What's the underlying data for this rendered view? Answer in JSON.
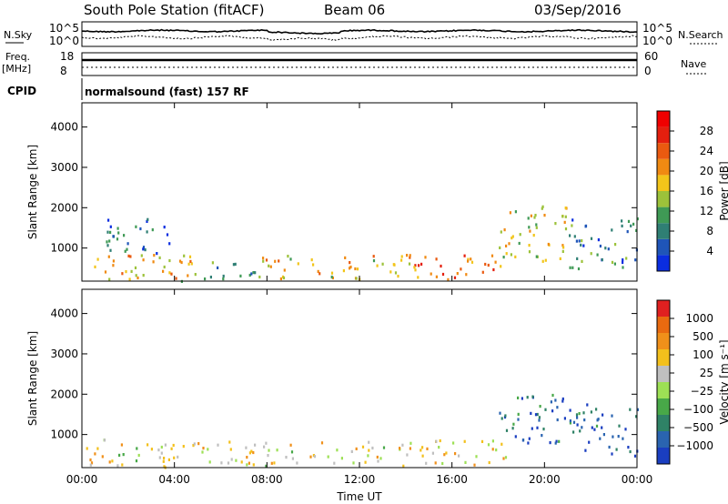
{
  "header": {
    "title": "South Pole Station (fitACF)",
    "beam": "Beam 06",
    "date": "03/Sep/2016"
  },
  "status_panels": {
    "nsky_label": "N.Sky",
    "nsearch_label": "N.Search",
    "noise_ticks_left": [
      "10^5",
      "10^0"
    ],
    "noise_ticks_right": [
      "10^5",
      "10^0"
    ],
    "freq_label": "Freq.",
    "freq_unit": "[MHz]",
    "freq_ticks": [
      "18",
      "8"
    ],
    "nave_label": "Nave",
    "nave_ticks": [
      "60",
      "0"
    ],
    "cpid_label": "CPID",
    "cpid_value": "normalsound (fast) 157 RF"
  },
  "chart_data": [
    {
      "type": "heatmap",
      "name": "power",
      "ylabel": "Slant Range [km]",
      "ylim": [
        180,
        4600
      ],
      "y_ticks": [
        1000,
        2000,
        3000,
        4000
      ],
      "x_ticks": [
        "00:00",
        "04:00",
        "08:00",
        "12:00",
        "16:00",
        "20:00",
        "00:00"
      ],
      "xlim_hours": [
        0,
        24
      ],
      "colorbar": {
        "label": "Power [dB]",
        "ticks": [
          "4",
          "8",
          "12",
          "16",
          "20",
          "24",
          "28"
        ],
        "colors": [
          "#0a2de0",
          "#1f55b8",
          "#2f7f74",
          "#3f9a55",
          "#9cc23a",
          "#f2c51a",
          "#f08a12",
          "#ea5a10",
          "#e41f0e",
          "#f00000"
        ]
      },
      "scatter_regions": [
        {
          "t0": 0.0,
          "t1": 4.8,
          "r0": 200,
          "r1": 900,
          "level": 0.6
        },
        {
          "t0": 1.0,
          "t1": 4.0,
          "r0": 900,
          "r1": 1800,
          "level": 0.2
        },
        {
          "t0": 4.8,
          "t1": 7.5,
          "r0": 250,
          "r1": 700,
          "level": 0.3
        },
        {
          "t0": 7.5,
          "t1": 14.0,
          "r0": 250,
          "r1": 850,
          "level": 0.55
        },
        {
          "t0": 14.0,
          "t1": 18.5,
          "r0": 250,
          "r1": 900,
          "level": 0.7
        },
        {
          "t0": 18.0,
          "t1": 21.0,
          "r0": 700,
          "r1": 2100,
          "level": 0.5
        },
        {
          "t0": 21.0,
          "t1": 24.0,
          "r0": 500,
          "r1": 1800,
          "level": 0.25
        }
      ]
    },
    {
      "type": "heatmap",
      "name": "velocity",
      "ylabel": "Slant Range [km]",
      "xlabel": "Time UT",
      "ylim": [
        180,
        4600
      ],
      "y_ticks": [
        1000,
        2000,
        3000,
        4000
      ],
      "x_ticks": [
        "00:00",
        "04:00",
        "08:00",
        "12:00",
        "16:00",
        "20:00",
        "00:00"
      ],
      "xlim_hours": [
        0,
        24
      ],
      "colorbar": {
        "label": "Velocity [m s⁻¹]",
        "ticks": [
          "1000",
          "500",
          "100",
          "25",
          "−25",
          "−100",
          "−500",
          "−1000"
        ],
        "colors": [
          "#1a3ec0",
          "#2a64b0",
          "#2f8266",
          "#48a848",
          "#9de055",
          "#bfbfbf",
          "#f3c01c",
          "#f0901a",
          "#e96a10",
          "#e02020"
        ]
      },
      "scatter_regions": [
        {
          "t0": 0.0,
          "t1": 4.8,
          "r0": 200,
          "r1": 900,
          "level": 0.55
        },
        {
          "t0": 4.8,
          "t1": 14.0,
          "r0": 250,
          "r1": 850,
          "level": 0.6
        },
        {
          "t0": 14.0,
          "t1": 18.5,
          "r0": 250,
          "r1": 900,
          "level": 0.62
        },
        {
          "t0": 18.0,
          "t1": 21.0,
          "r0": 800,
          "r1": 2100,
          "level": 0.1
        },
        {
          "t0": 21.0,
          "t1": 24.0,
          "r0": 500,
          "r1": 1800,
          "level": 0.1
        }
      ]
    }
  ]
}
